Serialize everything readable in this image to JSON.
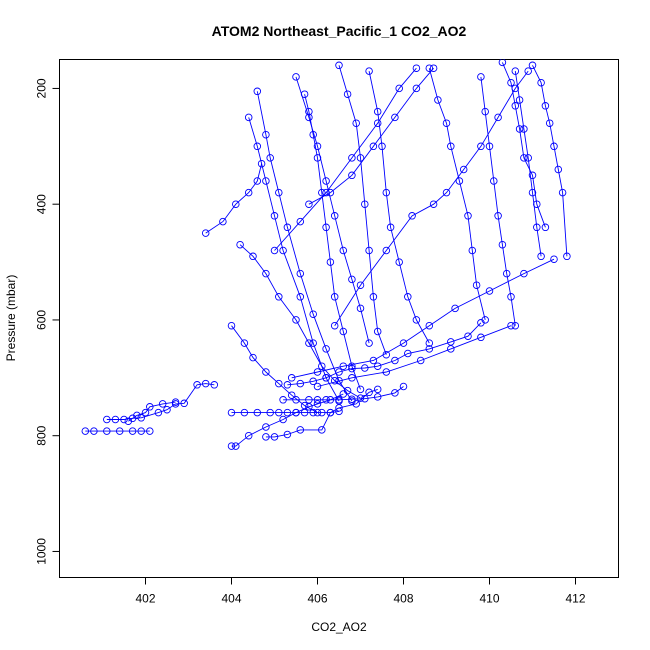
{
  "chart_data": {
    "type": "scatter",
    "title": "ATOM2 Northeast_Pacific_1 CO2_AO2",
    "xlabel": "CO2_AO2",
    "ylabel": "Pressure (mbar)",
    "xlim": [
      400,
      413
    ],
    "ylim": [
      1045,
      150
    ],
    "y_reversed": true,
    "x_ticks": [
      402,
      404,
      406,
      408,
      410,
      412
    ],
    "y_ticks": [
      200,
      400,
      600,
      800,
      1000
    ],
    "grid": false,
    "color": "#0000ff",
    "series": [
      {
        "points": [
          [
            400.6,
            792
          ],
          [
            400.8,
            792
          ],
          [
            401.1,
            792
          ],
          [
            401.4,
            792
          ],
          [
            401.7,
            792
          ],
          [
            401.9,
            792
          ],
          [
            402.1,
            792
          ]
        ]
      },
      {
        "points": [
          [
            401.1,
            772
          ],
          [
            401.3,
            772
          ],
          [
            401.5,
            772
          ],
          [
            401.7,
            770
          ],
          [
            401.9,
            769
          ],
          [
            402.3,
            760
          ],
          [
            402.5,
            755
          ],
          [
            402.7,
            745
          ],
          [
            402.9,
            744
          ],
          [
            403.2,
            712
          ],
          [
            403.4,
            710
          ],
          [
            403.6,
            712
          ]
        ]
      },
      {
        "points": [
          [
            401.6,
            775
          ],
          [
            401.8,
            765
          ],
          [
            402.0,
            760
          ],
          [
            402.1,
            750
          ],
          [
            402.4,
            745
          ],
          [
            402.7,
            742
          ]
        ]
      },
      {
        "points": [
          [
            404.0,
            818
          ],
          [
            404.1,
            818
          ],
          [
            404.4,
            800
          ],
          [
            404.8,
            785
          ],
          [
            405.2,
            772
          ],
          [
            405.5,
            760
          ],
          [
            405.8,
            750
          ],
          [
            406.0,
            745
          ],
          [
            406.3,
            738
          ],
          [
            406.6,
            728
          ]
        ]
      },
      {
        "points": [
          [
            404.8,
            802
          ],
          [
            405.0,
            802
          ],
          [
            405.3,
            798
          ],
          [
            405.6,
            790
          ],
          [
            406.1,
            790
          ],
          [
            406.3,
            760
          ],
          [
            406.5,
            752
          ],
          [
            406.9,
            745
          ],
          [
            407.2,
            725
          ],
          [
            407.4,
            720
          ]
        ]
      },
      {
        "points": [
          [
            404.0,
            760
          ],
          [
            404.3,
            760
          ],
          [
            404.6,
            760
          ],
          [
            404.9,
            760
          ],
          [
            405.1,
            760
          ],
          [
            405.3,
            760
          ],
          [
            405.5,
            760
          ],
          [
            405.7,
            760
          ],
          [
            405.9,
            760
          ],
          [
            406.1,
            760
          ],
          [
            406.3,
            760
          ],
          [
            406.5,
            758
          ]
        ]
      },
      {
        "points": [
          [
            405.2,
            738
          ],
          [
            405.5,
            738
          ],
          [
            405.8,
            738
          ],
          [
            406.0,
            738
          ],
          [
            406.2,
            738
          ],
          [
            406.5,
            738
          ],
          [
            406.8,
            737
          ],
          [
            407.1,
            736
          ],
          [
            407.4,
            733
          ],
          [
            407.8,
            726
          ],
          [
            408.0,
            715
          ]
        ]
      },
      {
        "points": [
          [
            405.3,
            712
          ],
          [
            405.6,
            710
          ],
          [
            405.9,
            706
          ],
          [
            406.2,
            700
          ],
          [
            406.5,
            690
          ],
          [
            406.8,
            684
          ],
          [
            407.1,
            683
          ],
          [
            407.4,
            680
          ],
          [
            407.8,
            670
          ],
          [
            408.1,
            658
          ],
          [
            408.6,
            650
          ],
          [
            409.1,
            638
          ],
          [
            409.5,
            628
          ],
          [
            409.8,
            605
          ]
        ]
      },
      {
        "points": [
          [
            403.4,
            450
          ],
          [
            403.8,
            430
          ],
          [
            404.1,
            400
          ],
          [
            404.4,
            380
          ],
          [
            404.6,
            360
          ],
          [
            404.7,
            330
          ]
        ]
      },
      {
        "points": [
          [
            404.2,
            470
          ],
          [
            404.5,
            490
          ],
          [
            404.8,
            520
          ],
          [
            405.1,
            560
          ],
          [
            405.5,
            600
          ],
          [
            405.8,
            640
          ],
          [
            406.1,
            680
          ],
          [
            406.4,
            705
          ],
          [
            406.7,
            722
          ],
          [
            407.0,
            735
          ]
        ]
      },
      {
        "points": [
          [
            404.4,
            250
          ],
          [
            404.6,
            300
          ],
          [
            404.8,
            360
          ],
          [
            405.0,
            420
          ],
          [
            405.2,
            480
          ],
          [
            405.6,
            560
          ],
          [
            405.9,
            640
          ],
          [
            406.2,
            700
          ],
          [
            406.5,
            740
          ]
        ]
      },
      {
        "points": [
          [
            404.6,
            205
          ],
          [
            404.8,
            280
          ],
          [
            404.9,
            320
          ],
          [
            405.1,
            380
          ],
          [
            405.3,
            440
          ],
          [
            405.6,
            520
          ],
          [
            405.9,
            590
          ],
          [
            406.2,
            650
          ],
          [
            406.5,
            705
          ],
          [
            406.8,
            740
          ]
        ]
      },
      {
        "points": [
          [
            404.0,
            610
          ],
          [
            404.3,
            640
          ],
          [
            404.5,
            665
          ],
          [
            404.8,
            690
          ],
          [
            405.1,
            710
          ],
          [
            405.4,
            730
          ],
          [
            405.7,
            748
          ],
          [
            406.0,
            760
          ]
        ]
      },
      {
        "points": [
          [
            405.7,
            210
          ],
          [
            405.8,
            240
          ],
          [
            405.9,
            280
          ],
          [
            406.0,
            320
          ],
          [
            406.1,
            380
          ],
          [
            406.2,
            440
          ],
          [
            406.3,
            500
          ],
          [
            406.4,
            560
          ],
          [
            406.6,
            620
          ],
          [
            406.8,
            680
          ],
          [
            407.0,
            720
          ]
        ]
      },
      {
        "points": [
          [
            405.5,
            180
          ],
          [
            405.8,
            250
          ],
          [
            406.0,
            300
          ],
          [
            406.2,
            360
          ],
          [
            406.4,
            420
          ],
          [
            406.6,
            480
          ],
          [
            406.8,
            530
          ],
          [
            407.0,
            580
          ],
          [
            407.2,
            640
          ]
        ]
      },
      {
        "points": [
          [
            406.5,
            160
          ],
          [
            406.7,
            210
          ],
          [
            406.9,
            260
          ],
          [
            407.0,
            320
          ],
          [
            407.1,
            400
          ],
          [
            407.2,
            480
          ],
          [
            407.3,
            560
          ],
          [
            407.4,
            620
          ],
          [
            407.6,
            660
          ]
        ]
      },
      {
        "points": [
          [
            407.2,
            170
          ],
          [
            407.4,
            240
          ],
          [
            407.5,
            300
          ],
          [
            407.6,
            380
          ],
          [
            407.7,
            440
          ],
          [
            407.9,
            500
          ],
          [
            408.1,
            560
          ],
          [
            408.3,
            600
          ],
          [
            408.6,
            640
          ]
        ]
      },
      {
        "points": [
          [
            408.6,
            165
          ],
          [
            408.8,
            220
          ],
          [
            409.0,
            260
          ],
          [
            409.1,
            300
          ],
          [
            409.3,
            360
          ],
          [
            409.5,
            420
          ],
          [
            409.6,
            480
          ],
          [
            409.7,
            540
          ],
          [
            409.9,
            600
          ]
        ]
      },
      {
        "points": [
          [
            409.8,
            180
          ],
          [
            409.9,
            240
          ],
          [
            410.0,
            300
          ],
          [
            410.1,
            360
          ],
          [
            410.2,
            420
          ],
          [
            410.3,
            470
          ],
          [
            410.4,
            520
          ],
          [
            410.5,
            560
          ],
          [
            410.6,
            610
          ]
        ]
      },
      {
        "points": [
          [
            410.6,
            170
          ],
          [
            410.7,
            220
          ],
          [
            410.8,
            270
          ],
          [
            410.9,
            320
          ],
          [
            411.0,
            380
          ],
          [
            411.1,
            440
          ],
          [
            411.2,
            490
          ]
        ]
      },
      {
        "points": [
          [
            411.0,
            160
          ],
          [
            411.2,
            190
          ],
          [
            411.3,
            230
          ],
          [
            411.4,
            260
          ],
          [
            411.5,
            300
          ],
          [
            411.6,
            340
          ],
          [
            411.7,
            380
          ],
          [
            411.8,
            490
          ]
        ]
      },
      {
        "points": [
          [
            410.3,
            155
          ],
          [
            410.5,
            190
          ],
          [
            410.6,
            230
          ],
          [
            410.7,
            270
          ],
          [
            410.8,
            320
          ],
          [
            411.0,
            350
          ],
          [
            411.1,
            400
          ],
          [
            411.3,
            440
          ]
        ]
      },
      {
        "points": [
          [
            405.4,
            700
          ],
          [
            406.0,
            690
          ],
          [
            406.6,
            680
          ],
          [
            407.3,
            670
          ],
          [
            408.0,
            640
          ],
          [
            408.6,
            610
          ],
          [
            409.2,
            580
          ],
          [
            410.0,
            550
          ],
          [
            410.8,
            520
          ],
          [
            411.5,
            495
          ]
        ]
      },
      {
        "points": [
          [
            406.0,
            715
          ],
          [
            406.8,
            700
          ],
          [
            407.6,
            690
          ],
          [
            408.4,
            670
          ],
          [
            409.1,
            650
          ],
          [
            409.8,
            630
          ],
          [
            410.5,
            610
          ]
        ]
      },
      {
        "points": [
          [
            405.8,
            400
          ],
          [
            406.3,
            380
          ],
          [
            406.8,
            350
          ],
          [
            407.3,
            300
          ],
          [
            407.8,
            250
          ],
          [
            408.3,
            200
          ],
          [
            408.7,
            165
          ]
        ]
      },
      {
        "points": [
          [
            405.0,
            480
          ],
          [
            405.6,
            430
          ],
          [
            406.2,
            380
          ],
          [
            406.8,
            320
          ],
          [
            407.4,
            260
          ],
          [
            407.9,
            200
          ],
          [
            408.3,
            165
          ]
        ]
      },
      {
        "points": [
          [
            406.4,
            610
          ],
          [
            407.0,
            540
          ],
          [
            407.6,
            480
          ],
          [
            408.2,
            420
          ],
          [
            408.7,
            400
          ],
          [
            409.0,
            380
          ],
          [
            409.4,
            340
          ],
          [
            409.8,
            300
          ],
          [
            410.2,
            250
          ],
          [
            410.6,
            200
          ],
          [
            410.9,
            170
          ]
        ]
      }
    ]
  }
}
